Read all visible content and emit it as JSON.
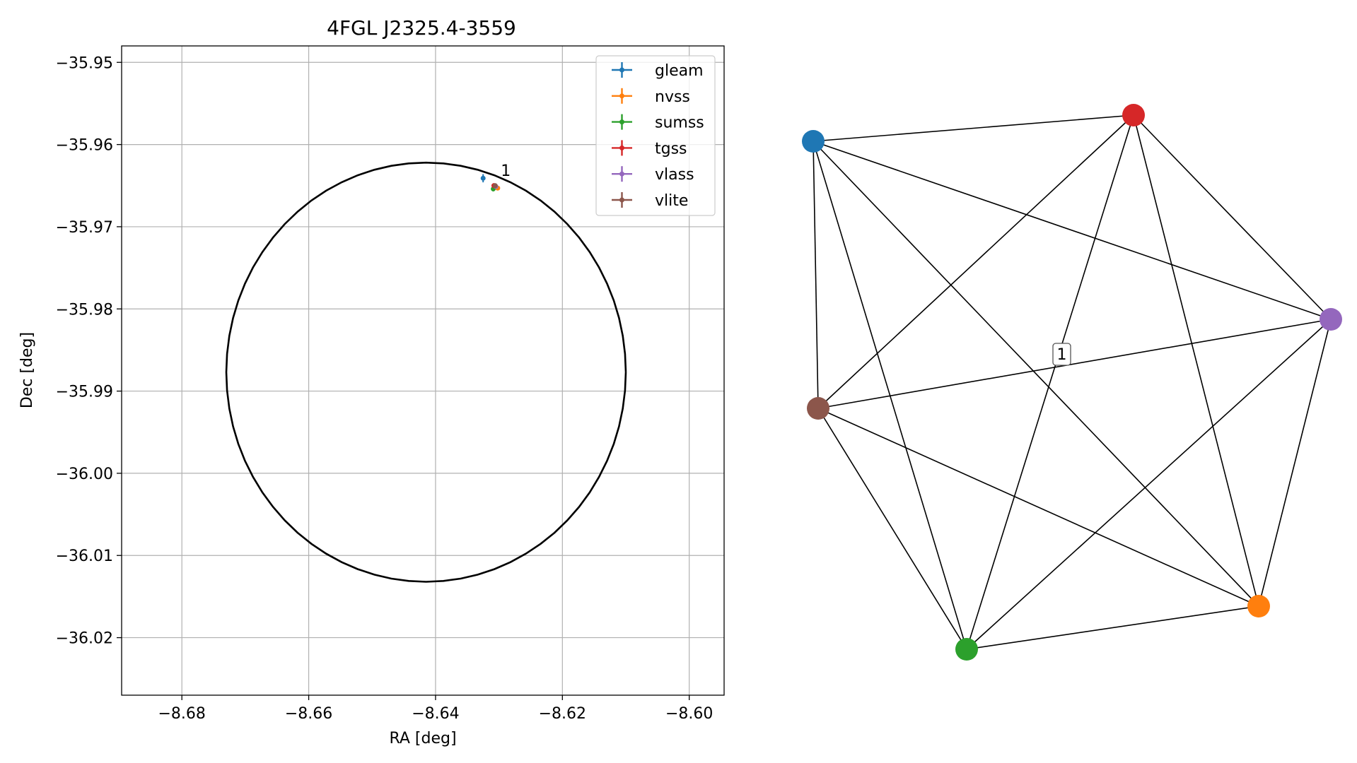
{
  "chart_data": [
    {
      "type": "scatter",
      "title": "4FGL J2325.4-3559",
      "xlabel": "RA [deg]",
      "ylabel": "Dec [deg]",
      "xlim": [
        -8.6895,
        -8.5945
      ],
      "ylim": [
        -36.027,
        -35.948
      ],
      "xticks": [
        -8.68,
        -8.66,
        -8.64,
        -8.62,
        -8.6
      ],
      "xtick_labels": [
        "−8.68",
        "−8.66",
        "−8.64",
        "−8.62",
        "−8.60"
      ],
      "yticks": [
        -35.95,
        -35.96,
        -35.97,
        -35.98,
        -35.99,
        -36.0,
        -36.01,
        -36.02
      ],
      "ytick_labels": [
        "−35.95",
        "−35.96",
        "−35.97",
        "−35.98",
        "−35.99",
        "−36.00",
        "−36.01",
        "−36.02"
      ],
      "grid": true,
      "legend_position": "top-right",
      "series": [
        {
          "name": "gleam",
          "color": "#1f77b4",
          "x": -8.6325,
          "y": -35.9641,
          "xerr": 0.0003,
          "yerr": 0.0005
        },
        {
          "name": "nvss",
          "color": "#ff7f0e",
          "x": -8.6302,
          "y": -35.9653,
          "xerr": 0.0002,
          "yerr": 0.0002
        },
        {
          "name": "sumss",
          "color": "#2ca02c",
          "x": -8.6309,
          "y": -35.9654,
          "xerr": 0.0003,
          "yerr": 0.0003
        },
        {
          "name": "tgss",
          "color": "#d62728",
          "x": -8.6308,
          "y": -35.965,
          "xerr": 0.0002,
          "yerr": 0.0003
        },
        {
          "name": "vlass",
          "color": "#9467bd",
          "x": -8.6305,
          "y": -35.9651,
          "xerr": 0.0001,
          "yerr": 0.0001
        },
        {
          "name": "vlite",
          "color": "#8c564b",
          "x": -8.6306,
          "y": -35.965,
          "xerr": 0.0002,
          "yerr": 0.0002
        }
      ],
      "ellipse": {
        "center_x": -8.6415,
        "center_y": -35.9877,
        "radius_x": 0.0315,
        "radius_y": 0.0255,
        "color": "#000000"
      },
      "annotations": [
        {
          "text": "1",
          "x": -8.6297,
          "y": -35.9638
        }
      ]
    },
    {
      "type": "network",
      "nodes": [
        {
          "name": "gleam",
          "color": "#1f77b4"
        },
        {
          "name": "tgss",
          "color": "#d62728"
        },
        {
          "name": "vlass",
          "color": "#9467bd"
        },
        {
          "name": "vlite",
          "color": "#8c564b"
        },
        {
          "name": "nvss",
          "color": "#ff7f0e"
        },
        {
          "name": "sumss",
          "color": "#2ca02c"
        }
      ],
      "edges": [
        [
          "gleam",
          "tgss"
        ],
        [
          "gleam",
          "vlass"
        ],
        [
          "gleam",
          "vlite"
        ],
        [
          "gleam",
          "nvss"
        ],
        [
          "gleam",
          "sumss"
        ],
        [
          "tgss",
          "vlass"
        ],
        [
          "tgss",
          "vlite"
        ],
        [
          "tgss",
          "nvss"
        ],
        [
          "tgss",
          "sumss"
        ],
        [
          "vlass",
          "vlite"
        ],
        [
          "vlass",
          "nvss"
        ],
        [
          "vlass",
          "sumss"
        ],
        [
          "vlite",
          "nvss"
        ],
        [
          "vlite",
          "sumss"
        ],
        [
          "nvss",
          "sumss"
        ]
      ],
      "edge_label": "1"
    }
  ]
}
